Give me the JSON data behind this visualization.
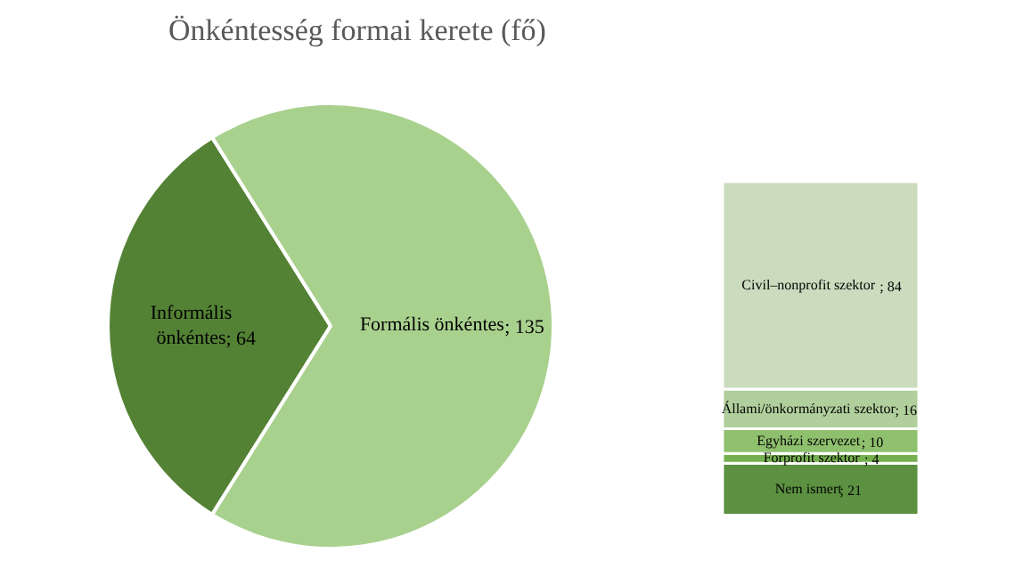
{
  "chart_data": [
    {
      "type": "pie",
      "title": "Önkéntesség formai kerete (fő)",
      "categories": [
        "Informális önkéntes",
        "Formális önkéntes"
      ],
      "values": [
        64,
        135
      ],
      "colors": [
        "#548235",
        "#a9d18e"
      ],
      "value_labels": [
        "; 64",
        "; 135"
      ]
    },
    {
      "type": "bar",
      "stacked": true,
      "categories": [
        null
      ],
      "tick_labels": false,
      "series": [
        {
          "name": "Nem ismert",
          "color": "#5b9140",
          "values": [
            21
          ],
          "value_labels": [
            "; 21"
          ]
        },
        {
          "name": "Forprofit szektor",
          "color": "#75b04f",
          "values": [
            4
          ],
          "value_labels": [
            "; 4"
          ]
        },
        {
          "name": "Egyházi szervezet",
          "color": "#8fc06e",
          "values": [
            10
          ],
          "value_labels": [
            "; 10"
          ]
        },
        {
          "name": "Állami/önkormányzati szektor",
          "color": "#b0cf9c",
          "values": [
            16
          ],
          "value_labels": [
            "; 16"
          ]
        },
        {
          "name": "Civil–nonprofit szektor",
          "color": "#cadcbd",
          "values": [
            84
          ],
          "value_labels": [
            "; 84"
          ]
        }
      ]
    }
  ]
}
